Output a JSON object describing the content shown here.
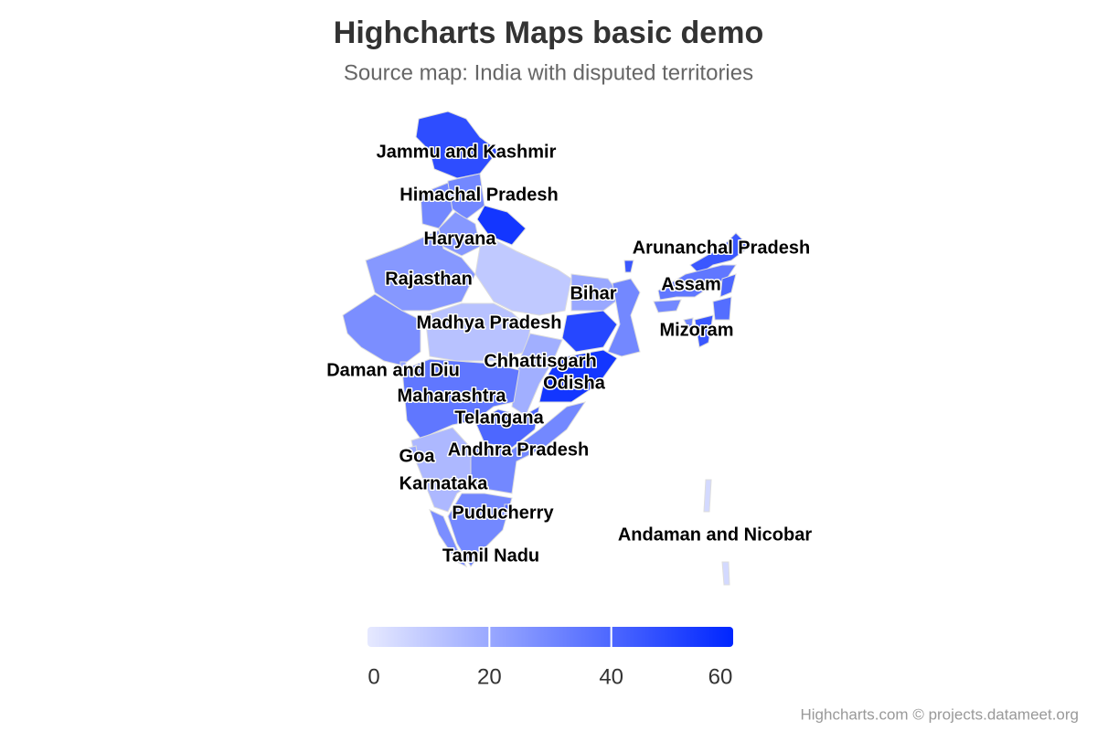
{
  "chart_data": {
    "type": "map",
    "title": "Highcharts Maps basic demo",
    "subtitle": "Source map: India with disputed territories",
    "credits": "Highcharts.com © projects.datameet.org",
    "color_axis": {
      "lim": [
        0,
        60
      ],
      "ticks": [
        0,
        20,
        40,
        60
      ],
      "min_color": "#e6e9ff",
      "max_color": "#0026ff"
    },
    "regions": [
      {
        "name": "Jammu and Kashmir",
        "value": 48
      },
      {
        "name": "Himachal Pradesh",
        "value": 30
      },
      {
        "name": null,
        "value": 30
      },
      {
        "name": null,
        "value": 55
      },
      {
        "name": "Haryana",
        "value": 25
      },
      {
        "name": "Rajasthan",
        "value": 25
      },
      {
        "name": null,
        "value": 10
      },
      {
        "name": null,
        "value": 28
      },
      {
        "name": "Madhya Pradesh",
        "value": 12
      },
      {
        "name": "Bihar",
        "value": 20
      },
      {
        "name": null,
        "value": 50
      },
      {
        "name": null,
        "value": 30
      },
      {
        "name": "Chhattisgarh",
        "value": 18
      },
      {
        "name": "Odisha",
        "value": 55
      },
      {
        "name": "Maharashtra",
        "value": 35
      },
      {
        "name": "Telangana",
        "value": 40
      },
      {
        "name": "Andhra Pradesh",
        "value": 30
      },
      {
        "name": "Karnataka",
        "value": 15
      },
      {
        "name": "Goa",
        "value": 20
      },
      {
        "name": null,
        "value": 28
      },
      {
        "name": "Tamil Nadu",
        "value": 30
      },
      {
        "name": "Puducherry",
        "value": 40
      },
      {
        "name": "Daman and Diu",
        "value": 20
      },
      {
        "name": null,
        "value": 45
      },
      {
        "name": "Arunanchal Pradesh",
        "value": 45
      },
      {
        "name": "Assam",
        "value": 35
      },
      {
        "name": null,
        "value": 30
      },
      {
        "name": null,
        "value": 40
      },
      {
        "name": null,
        "value": 38
      },
      {
        "name": "Mizoram",
        "value": 45
      },
      {
        "name": null,
        "value": 30
      },
      {
        "name": "Andaman and Nicobar",
        "value": 5
      }
    ]
  }
}
